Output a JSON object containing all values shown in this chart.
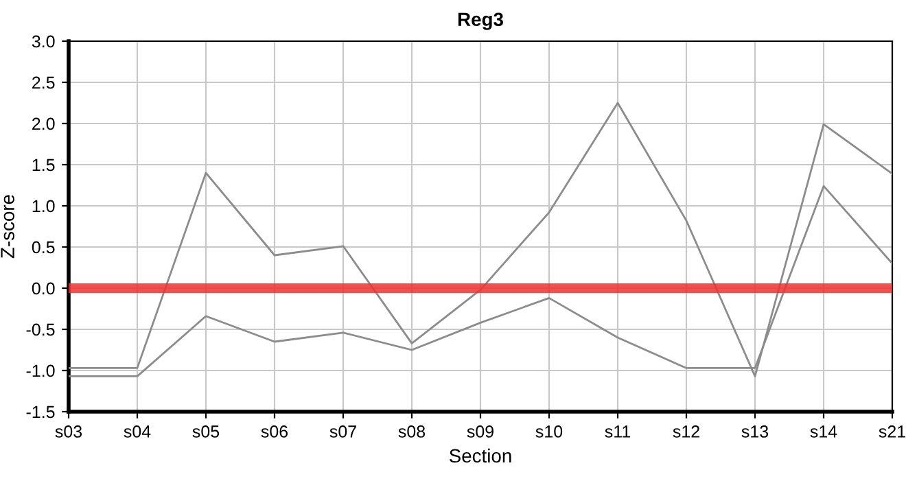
{
  "chart_data": {
    "type": "line",
    "title": "Reg3",
    "xlabel": "Section",
    "ylabel": "Z-score",
    "categories": [
      "s03",
      "s04",
      "s05",
      "s06",
      "s07",
      "s08",
      "s09",
      "s10",
      "s11",
      "s12",
      "s13",
      "s14",
      "s21"
    ],
    "series": [
      {
        "color": "#8c8c8c",
        "values": [
          -0.97,
          -0.97,
          1.4,
          0.4,
          0.51,
          -0.67,
          -0.02,
          0.92,
          2.25,
          0.82,
          -1.07,
          1.99,
          1.39
        ]
      },
      {
        "color": "#8c8c8c",
        "values": [
          -1.07,
          -1.07,
          -0.34,
          -0.65,
          -0.54,
          -0.75,
          -0.42,
          -0.12,
          -0.6,
          -0.97,
          -0.97,
          1.24,
          0.3
        ]
      }
    ],
    "ylim": [
      -1.5,
      3.0
    ],
    "yticks": [
      {
        "value": -1.5,
        "label": "-1.5"
      },
      {
        "value": -1.0,
        "label": "-1.0"
      },
      {
        "value": -0.5,
        "label": "-0.5"
      },
      {
        "value": 0.0,
        "label": "0.0"
      },
      {
        "value": 0.5,
        "label": "0.5"
      },
      {
        "value": 1.0,
        "label": "1.0"
      },
      {
        "value": 1.5,
        "label": "1.5"
      },
      {
        "value": 2.0,
        "label": "2.0"
      },
      {
        "value": 2.5,
        "label": "2.5"
      },
      {
        "value": 3.0,
        "label": "3.0"
      }
    ],
    "ref_lines": [
      {
        "axis": "y",
        "value": 0,
        "color": "#f03030"
      }
    ],
    "grid": true,
    "legend": false,
    "line_style": "solid",
    "marker": "none"
  }
}
